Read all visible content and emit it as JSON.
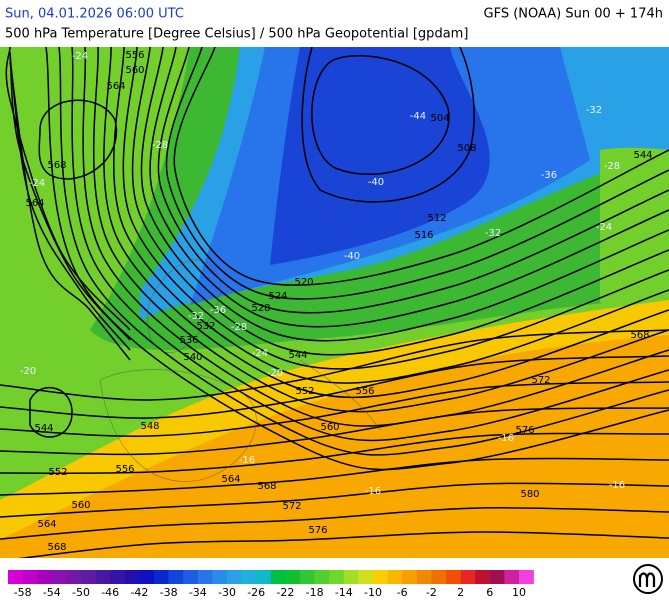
{
  "header": {
    "date": "Sun, 04.01.2026 06:00 UTC",
    "model": "GFS (NOAA) Sun 00 + 174h",
    "subtitle": "500 hPa Temperature [Degree Celsius] / 500 hPa Geopotential [gpdam]"
  },
  "map": {
    "contour_labels": [
      556,
      560,
      564,
      568,
      564,
      504,
      508,
      512,
      516,
      520,
      524,
      528,
      532,
      536,
      540,
      544,
      548,
      552,
      556,
      560,
      564,
      568,
      572,
      576,
      572,
      576,
      580,
      544,
      568,
      544,
      552,
      556,
      560,
      564,
      568
    ],
    "temperature_labels": [
      -24,
      -24,
      -28,
      -44,
      -40,
      -40,
      -36,
      -32,
      -28,
      -24,
      -32,
      -32,
      -36,
      -28,
      -24,
      -20,
      -20,
      -16,
      -16,
      -16,
      -16
    ]
  },
  "colorbar": {
    "ticks": [
      -58,
      -54,
      -50,
      -46,
      -42,
      -38,
      -34,
      -30,
      -26,
      -22,
      -18,
      -14,
      -10,
      -6,
      -2,
      2,
      6,
      10
    ],
    "colors": [
      "#d400d4",
      "#c000c8",
      "#a800bc",
      "#8c10b0",
      "#7418a8",
      "#5e1ca4",
      "#4818a0",
      "#3414a4",
      "#2010b0",
      "#1010c0",
      "#0a28d0",
      "#1444dc",
      "#1e5ce6",
      "#2874ea",
      "#2a8cea",
      "#2aa0e6",
      "#20b0dc",
      "#10b8c8",
      "#00c040",
      "#10c030",
      "#30c830",
      "#50d030",
      "#70d828",
      "#a0e020",
      "#d0e020",
      "#f8d000",
      "#f8b800",
      "#f8a000",
      "#f08800",
      "#f07000",
      "#f05000",
      "#e82820",
      "#c01030",
      "#a01050",
      "#d020a0",
      "#f040e0"
    ]
  }
}
